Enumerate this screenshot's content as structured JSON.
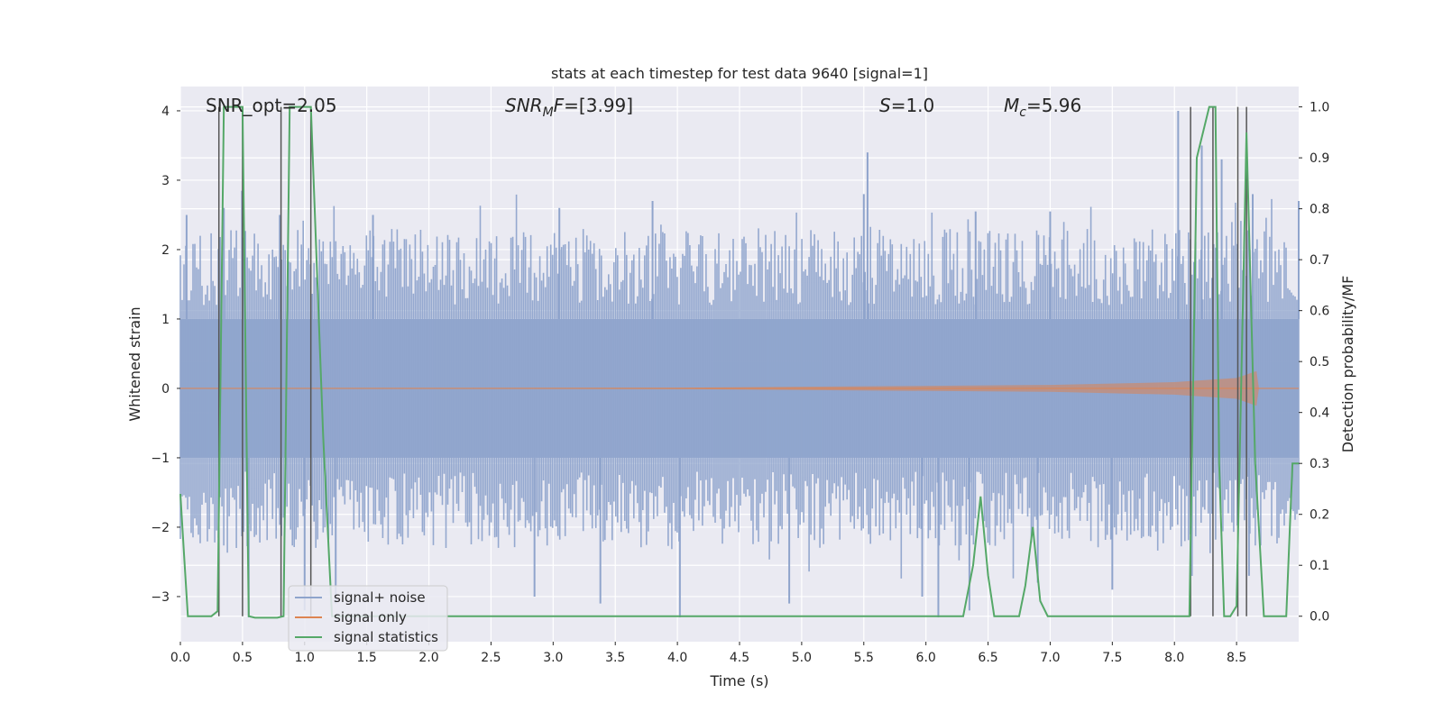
{
  "chart_data": {
    "type": "line",
    "title": "stats at each timestep for test data 9640 [signal=1]",
    "xlabel": "Time (s)",
    "ylabel_left": "Whitened strain",
    "ylabel_right": "Detection probability/MF",
    "xlim": [
      0.0,
      9.0
    ],
    "ylim_left": [
      -3.65,
      4.35
    ],
    "ylim_right": [
      -0.05,
      1.04
    ],
    "x_ticks": [
      0.0,
      0.5,
      1.0,
      1.5,
      2.0,
      2.5,
      3.0,
      3.5,
      4.0,
      4.5,
      5.0,
      5.5,
      6.0,
      6.5,
      7.0,
      7.5,
      8.0,
      8.5
    ],
    "x_tick_labels": [
      "0.0",
      "0.5",
      "1.0",
      "1.5",
      "2.0",
      "2.5",
      "3.0",
      "3.5",
      "4.0",
      "4.5",
      "5.0",
      "5.5",
      "6.0",
      "6.5",
      "7.0",
      "7.5",
      "8.0",
      "8.5"
    ],
    "y_left_ticks": [
      -3,
      -2,
      -1,
      0,
      1,
      2,
      3,
      4
    ],
    "y_left_tick_labels": [
      "−3",
      "−2",
      "−1",
      "0",
      "1",
      "2",
      "3",
      "4"
    ],
    "y_right_ticks": [
      0.0,
      0.1,
      0.2,
      0.3,
      0.4,
      0.5,
      0.6,
      0.7,
      0.8,
      0.9,
      1.0
    ],
    "y_right_tick_labels": [
      "0.0",
      "0.1",
      "0.2",
      "0.3",
      "0.4",
      "0.5",
      "0.6",
      "0.7",
      "0.8",
      "0.9",
      "1.0"
    ],
    "annotations": {
      "snr_opt": "SNR_opt=2.05",
      "snr_mf": "SNR_MF=[3.99]",
      "s": "S=1.0",
      "mc": "M_c=5.96"
    },
    "legend": {
      "position": "lower-left",
      "entries": [
        {
          "label": "signal+ noise",
          "color": "#8fa4cc"
        },
        {
          "label": "signal only",
          "color": "#dd8452"
        },
        {
          "label": "signal statistics",
          "color": "#55a868"
        }
      ]
    },
    "series": [
      {
        "name": "signal statistics",
        "axis": "right",
        "color": "#55a868",
        "points": [
          [
            0.0,
            0.24
          ],
          [
            0.03,
            0.12
          ],
          [
            0.06,
            0.0
          ],
          [
            0.25,
            0.0
          ],
          [
            0.3,
            0.01
          ],
          [
            0.35,
            1.0
          ],
          [
            0.5,
            1.0
          ],
          [
            0.55,
            0.0
          ],
          [
            0.6,
            -0.003
          ],
          [
            0.78,
            -0.003
          ],
          [
            0.83,
            0.0
          ],
          [
            0.88,
            1.0
          ],
          [
            1.05,
            1.0
          ],
          [
            1.15,
            0.35
          ],
          [
            1.22,
            0.0
          ],
          [
            6.2,
            0.0
          ],
          [
            6.3,
            0.0
          ],
          [
            6.38,
            0.1
          ],
          [
            6.44,
            0.235
          ],
          [
            6.5,
            0.08
          ],
          [
            6.55,
            0.0
          ],
          [
            6.75,
            0.0
          ],
          [
            6.8,
            0.06
          ],
          [
            6.86,
            0.175
          ],
          [
            6.92,
            0.03
          ],
          [
            6.98,
            0.0
          ],
          [
            8.12,
            0.0
          ],
          [
            8.18,
            0.9
          ],
          [
            8.28,
            1.0
          ],
          [
            8.33,
            1.0
          ],
          [
            8.36,
            0.3
          ],
          [
            8.4,
            0.0
          ],
          [
            8.45,
            0.0
          ],
          [
            8.5,
            0.02
          ],
          [
            8.58,
            0.95
          ],
          [
            8.65,
            0.3
          ],
          [
            8.72,
            0.0
          ],
          [
            8.9,
            0.0
          ],
          [
            8.95,
            0.3
          ],
          [
            9.0,
            0.3
          ]
        ]
      },
      {
        "name": "signal only",
        "axis": "left",
        "color": "#dd8452",
        "description_points": [
          [
            0.0,
            0.0
          ],
          [
            9.0,
            0.0
          ]
        ],
        "envelope": [
          [
            0.0,
            0.0
          ],
          [
            4.0,
            0.01
          ],
          [
            7.0,
            0.05
          ],
          [
            8.0,
            0.09
          ],
          [
            8.5,
            0.15
          ],
          [
            8.66,
            0.25
          ],
          [
            8.68,
            0.0
          ],
          [
            9.0,
            0.0
          ]
        ]
      },
      {
        "name": "signal+ noise",
        "axis": "left",
        "color": "#8fa4cc",
        "spike_peaks": [
          [
            0.05,
            2.5
          ],
          [
            0.35,
            2.6
          ],
          [
            0.8,
            2.5
          ],
          [
            1.55,
            2.5
          ],
          [
            3.05,
            2.6
          ],
          [
            3.8,
            2.7
          ],
          [
            5.53,
            3.4
          ],
          [
            5.5,
            2.8
          ],
          [
            6.4,
            2.55
          ],
          [
            7.0,
            2.55
          ],
          [
            8.03,
            4.0
          ],
          [
            8.22,
            3.5
          ],
          [
            8.38,
            3.3
          ],
          [
            8.63,
            2.8
          ],
          [
            9.0,
            2.7
          ]
        ],
        "spike_troughs": [
          [
            0.55,
            -3.3
          ],
          [
            1.0,
            -3.2
          ],
          [
            1.25,
            -3.1
          ],
          [
            2.85,
            -3.0
          ],
          [
            3.38,
            -3.1
          ],
          [
            4.02,
            -3.3
          ],
          [
            4.9,
            -3.1
          ],
          [
            5.97,
            -3.0
          ],
          [
            6.1,
            -3.3
          ],
          [
            6.35,
            -3.2
          ],
          [
            6.9,
            -2.8
          ],
          [
            7.5,
            -2.9
          ],
          [
            8.6,
            -2.7
          ]
        ]
      }
    ],
    "vertical_lines_x": [
      0.31,
      0.5,
      0.81,
      1.05,
      8.13,
      8.31,
      8.51,
      8.58
    ]
  }
}
